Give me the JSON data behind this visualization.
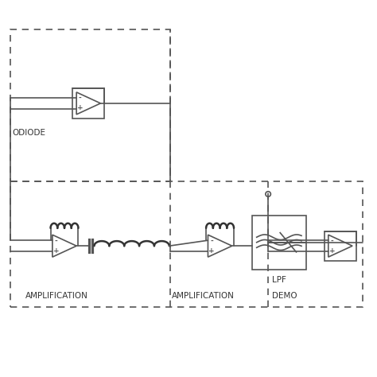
{
  "bg_color": "#ffffff",
  "line_color": "#555555",
  "dark_color": "#333333",
  "text_color": "#333333",
  "fig_width": 4.74,
  "fig_height": 4.74,
  "dpi": 100,
  "labels": {
    "photodiode": "ODIODE",
    "amp1": "AMPLIFICATION",
    "amp2": "AMPLIFICATION",
    "demo": "DEMO",
    "lpf": "LPF"
  },
  "lw": 1.2,
  "lw2": 1.8
}
